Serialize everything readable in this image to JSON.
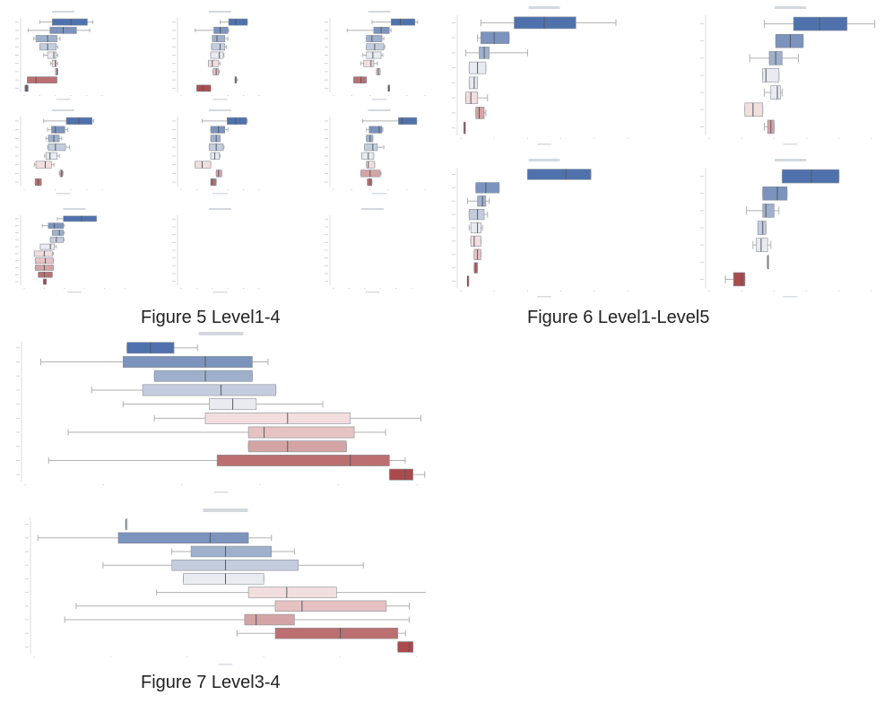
{
  "captions": {
    "fig5": "Figure 5 Level1-4",
    "fig6": "Figure 6 Level1-Level5",
    "fig7": "Figure 7 Level3-4"
  },
  "palette": [
    "#4f72ad",
    "#7b93bd",
    "#9fb0cc",
    "#c4cddd",
    "#e9ebf0",
    "#f2dede",
    "#e6c2c2",
    "#d4a4a4",
    "#bb6f70",
    "#ab4a4d"
  ],
  "chart_data": [
    {
      "id": "f5a",
      "type": "box",
      "orientation": "horizontal",
      "xlim": [
        0,
        10
      ],
      "boxes": [
        {
          "lo": 2.0,
          "q1": 3.6,
          "med": 6.0,
          "q3": 8.1,
          "hi": 8.8,
          "c": 0
        },
        {
          "lo": 0.5,
          "q1": 3.3,
          "med": 5.0,
          "q3": 6.7,
          "hi": 8.4,
          "c": 1
        },
        {
          "lo": 1.2,
          "q1": 1.5,
          "med": 3.0,
          "q3": 4.2,
          "hi": 4.6,
          "c": 2
        },
        {
          "lo": 2.0,
          "q1": 2.0,
          "med": 3.0,
          "q3": 4.1,
          "hi": 4.3,
          "c": 3
        },
        {
          "lo": 2.5,
          "q1": 3.0,
          "med": 3.8,
          "q3": 4.1,
          "hi": 4.3,
          "c": 4
        },
        {
          "lo": 3.4,
          "q1": 3.6,
          "med": 4.0,
          "q3": 4.1,
          "hi": 4.3,
          "c": 5
        },
        {
          "lo": 4.0,
          "q1": 4.0,
          "med": 4.2,
          "q3": 4.3,
          "hi": 4.3,
          "c": 6
        },
        {
          "lo": 0.4,
          "q1": 0.4,
          "med": 1.5,
          "q3": 4.2,
          "hi": 4.2,
          "c": 8
        },
        {
          "lo": 0.1,
          "q1": 0.1,
          "med": 0.3,
          "q3": 0.5,
          "hi": 0.5,
          "c": 9
        }
      ]
    },
    {
      "id": "f5b",
      "type": "box",
      "orientation": "horizontal",
      "xlim": [
        0,
        10
      ],
      "boxes": [
        {
          "lo": 5.0,
          "q1": 6.1,
          "med": 7.0,
          "q3": 8.5,
          "hi": 8.5,
          "c": 0
        },
        {
          "lo": 1.8,
          "q1": 4.2,
          "med": 5.0,
          "q3": 6.0,
          "hi": 6.1,
          "c": 1
        },
        {
          "lo": 4.0,
          "q1": 4.0,
          "med": 4.6,
          "q3": 5.6,
          "hi": 6.0,
          "c": 2
        },
        {
          "lo": 3.9,
          "q1": 3.9,
          "med": 5.0,
          "q3": 5.6,
          "hi": 5.8,
          "c": 3
        },
        {
          "lo": 3.8,
          "q1": 3.8,
          "med": 4.9,
          "q3": 5.4,
          "hi": 5.5,
          "c": 4
        },
        {
          "lo": 3.5,
          "q1": 3.5,
          "med": 4.0,
          "q3": 4.8,
          "hi": 5.0,
          "c": 5
        },
        {
          "lo": 4.1,
          "q1": 4.1,
          "med": 4.5,
          "q3": 4.8,
          "hi": 4.9,
          "c": 6
        },
        {
          "lo": 6.9,
          "q1": 6.9,
          "med": 7.0,
          "q3": 7.1,
          "hi": 7.2,
          "c": 7
        },
        {
          "lo": 2.0,
          "q1": 2.0,
          "med": 2.8,
          "q3": 3.8,
          "hi": 3.8,
          "c": 9
        }
      ]
    },
    {
      "id": "f5c",
      "type": "box",
      "orientation": "horizontal",
      "xlim": [
        0,
        10
      ],
      "boxes": [
        {
          "lo": 4.2,
          "q1": 6.3,
          "med": 7.3,
          "q3": 8.9,
          "hi": 9.2,
          "c": 0
        },
        {
          "lo": 1.5,
          "q1": 4.4,
          "med": 5.2,
          "q3": 6.1,
          "hi": 6.3,
          "c": 1
        },
        {
          "lo": 3.6,
          "q1": 3.6,
          "med": 4.2,
          "q3": 5.3,
          "hi": 5.5,
          "c": 2
        },
        {
          "lo": 3.6,
          "q1": 3.6,
          "med": 4.5,
          "q3": 5.5,
          "hi": 5.6,
          "c": 3
        },
        {
          "lo": 3.2,
          "q1": 3.6,
          "med": 4.3,
          "q3": 5.2,
          "hi": 5.4,
          "c": 4
        },
        {
          "lo": 3.0,
          "q1": 3.3,
          "med": 4.1,
          "q3": 4.4,
          "hi": 4.8,
          "c": 5
        },
        {
          "lo": 4.7,
          "q1": 4.7,
          "med": 4.9,
          "q3": 5.1,
          "hi": 5.1,
          "c": 6
        },
        {
          "lo": 2.2,
          "q1": 2.2,
          "med": 3.0,
          "q3": 3.6,
          "hi": 3.6,
          "c": 8
        },
        {
          "lo": 6.0,
          "q1": 6.0,
          "med": 6.0,
          "q3": 6.0,
          "hi": 6.0,
          "c": 9
        }
      ]
    },
    {
      "id": "f5d",
      "type": "box",
      "orientation": "horizontal",
      "xlim": [
        0,
        10
      ],
      "boxes": [
        {
          "lo": 2.5,
          "q1": 5.4,
          "med": 7.0,
          "q3": 8.7,
          "hi": 8.9,
          "c": 0
        },
        {
          "lo": 3.0,
          "q1": 3.5,
          "med": 4.0,
          "q3": 5.2,
          "hi": 5.6,
          "c": 1
        },
        {
          "lo": 2.8,
          "q1": 3.1,
          "med": 3.8,
          "q3": 4.5,
          "hi": 4.8,
          "c": 2
        },
        {
          "lo": 3.0,
          "q1": 3.1,
          "med": 4.0,
          "q3": 5.3,
          "hi": 5.8,
          "c": 3
        },
        {
          "lo": 2.6,
          "q1": 2.8,
          "med": 3.3,
          "q3": 4.2,
          "hi": 4.5,
          "c": 4
        },
        {
          "lo": 1.3,
          "q1": 1.5,
          "med": 2.7,
          "q3": 3.5,
          "hi": 3.8,
          "c": 5
        },
        {
          "lo": 4.5,
          "q1": 4.6,
          "med": 4.8,
          "q3": 4.9,
          "hi": 5.0,
          "c": 7
        },
        {
          "lo": 1.4,
          "q1": 1.4,
          "med": 1.8,
          "q3": 2.2,
          "hi": 2.2,
          "c": 8
        }
      ]
    },
    {
      "id": "f5e",
      "type": "box",
      "orientation": "horizontal",
      "xlim": [
        0,
        10
      ],
      "boxes": [
        {
          "lo": 2.7,
          "q1": 5.9,
          "med": 7.0,
          "q3": 8.4,
          "hi": 8.5,
          "c": 0
        },
        {
          "lo": 3.8,
          "q1": 3.8,
          "med": 4.8,
          "q3": 5.6,
          "hi": 6.0,
          "c": 1
        },
        {
          "lo": 3.8,
          "q1": 3.8,
          "med": 4.5,
          "q3": 5.0,
          "hi": 5.0,
          "c": 2
        },
        {
          "lo": 3.6,
          "q1": 3.6,
          "med": 4.5,
          "q3": 5.4,
          "hi": 5.5,
          "c": 3
        },
        {
          "lo": 3.8,
          "q1": 3.8,
          "med": 4.3,
          "q3": 4.9,
          "hi": 5.0,
          "c": 4
        },
        {
          "lo": 1.8,
          "q1": 1.8,
          "med": 2.7,
          "q3": 3.8,
          "hi": 3.8,
          "c": 5
        },
        {
          "lo": 4.5,
          "q1": 4.5,
          "med": 4.8,
          "q3": 5.2,
          "hi": 5.2,
          "c": 7
        },
        {
          "lo": 3.8,
          "q1": 3.8,
          "med": 4.0,
          "q3": 4.5,
          "hi": 4.5,
          "c": 8
        }
      ]
    },
    {
      "id": "f5f",
      "type": "box",
      "orientation": "horizontal",
      "xlim": [
        0,
        10
      ],
      "boxes": [
        {
          "lo": 3.2,
          "q1": 7.1,
          "med": 7.5,
          "q3": 9.1,
          "hi": 9.1,
          "c": 0
        },
        {
          "lo": 3.6,
          "q1": 3.9,
          "med": 5.0,
          "q3": 5.3,
          "hi": 5.4,
          "c": 1
        },
        {
          "lo": 3.6,
          "q1": 3.6,
          "med": 4.0,
          "q3": 4.3,
          "hi": 4.3,
          "c": 2
        },
        {
          "lo": 3.4,
          "q1": 3.4,
          "med": 4.3,
          "q3": 4.8,
          "hi": 5.5,
          "c": 3
        },
        {
          "lo": 3.1,
          "q1": 3.1,
          "med": 3.8,
          "q3": 4.4,
          "hi": 4.4,
          "c": 4
        },
        {
          "lo": 3.6,
          "q1": 3.6,
          "med": 3.8,
          "q3": 4.5,
          "hi": 4.5,
          "c": 5
        },
        {
          "lo": 3.0,
          "q1": 3.0,
          "med": 4.0,
          "q3": 5.1,
          "hi": 5.2,
          "c": 7
        },
        {
          "lo": 3.7,
          "q1": 3.7,
          "med": 4.0,
          "q3": 4.2,
          "hi": 4.2,
          "c": 8
        }
      ]
    },
    {
      "id": "f5g",
      "type": "box",
      "orientation": "horizontal",
      "xlim": [
        0,
        10
      ],
      "boxes": [
        {
          "lo": 3.3,
          "q1": 3.9,
          "med": 5.7,
          "q3": 7.2,
          "hi": 7.2,
          "c": 0
        },
        {
          "lo": 1.8,
          "q1": 2.4,
          "med": 3.0,
          "q3": 3.9,
          "hi": 4.0,
          "c": 1
        },
        {
          "lo": 2.8,
          "q1": 2.8,
          "med": 3.5,
          "q3": 3.9,
          "hi": 4.0,
          "c": 2
        },
        {
          "lo": 2.6,
          "q1": 2.6,
          "med": 3.2,
          "q3": 3.9,
          "hi": 4.0,
          "c": 3
        },
        {
          "lo": 1.6,
          "q1": 1.6,
          "med": 2.6,
          "q3": 3.0,
          "hi": 3.2,
          "c": 4
        },
        {
          "lo": 1.0,
          "q1": 1.0,
          "med": 2.0,
          "q3": 2.8,
          "hi": 2.9,
          "c": 5
        },
        {
          "lo": 1.1,
          "q1": 1.1,
          "med": 2.1,
          "q3": 2.9,
          "hi": 2.9,
          "c": 6
        },
        {
          "lo": 1.1,
          "q1": 1.1,
          "med": 2.0,
          "q3": 2.9,
          "hi": 2.9,
          "c": 7
        },
        {
          "lo": 1.4,
          "q1": 1.4,
          "med": 2.0,
          "q3": 2.8,
          "hi": 2.8,
          "c": 8
        },
        {
          "lo": 1.9,
          "q1": 1.9,
          "med": 2.1,
          "q3": 2.2,
          "hi": 2.2,
          "c": 9
        }
      ]
    },
    {
      "id": "f5h",
      "type": "box",
      "orientation": "horizontal",
      "xlim": [
        0,
        10
      ],
      "boxes": []
    },
    {
      "id": "f5i",
      "type": "box",
      "orientation": "horizontal",
      "xlim": [
        0,
        10
      ],
      "boxes": []
    },
    {
      "id": "f6a",
      "type": "box",
      "orientation": "horizontal",
      "xlim": [
        0,
        10
      ],
      "boxes": [
        {
          "lo": 1.2,
          "q1": 3.2,
          "med": 5.0,
          "q3": 6.9,
          "hi": 9.3,
          "c": 0
        },
        {
          "lo": 1.0,
          "q1": 1.2,
          "med": 2.0,
          "q3": 2.9,
          "hi": 2.9,
          "c": 1
        },
        {
          "lo": 0.3,
          "q1": 1.1,
          "med": 1.4,
          "q3": 1.7,
          "hi": 4.0,
          "c": 2
        },
        {
          "lo": 0.5,
          "q1": 0.5,
          "med": 1.0,
          "q3": 1.5,
          "hi": 1.5,
          "c": 4
        },
        {
          "lo": 0.5,
          "q1": 0.5,
          "med": 0.8,
          "q3": 1.0,
          "hi": 1.0,
          "c": 4
        },
        {
          "lo": 0.3,
          "q1": 0.3,
          "med": 0.6,
          "q3": 1.0,
          "hi": 1.6,
          "c": 5
        },
        {
          "lo": 0.9,
          "q1": 0.9,
          "med": 1.1,
          "q3": 1.4,
          "hi": 1.5,
          "c": 7
        },
        {
          "lo": 0.2,
          "q1": 0.2,
          "med": 0.2,
          "q3": 0.2,
          "hi": 0.2,
          "c": 9
        }
      ]
    },
    {
      "id": "f6b",
      "type": "box",
      "orientation": "horizontal",
      "xlim": [
        0,
        10
      ],
      "boxes": [
        {
          "lo": 3.4,
          "q1": 5.2,
          "med": 6.8,
          "q3": 8.5,
          "hi": 10.2,
          "c": 0
        },
        {
          "lo": 4.1,
          "q1": 4.1,
          "med": 5.0,
          "q3": 5.8,
          "hi": 5.8,
          "c": 1
        },
        {
          "lo": 2.5,
          "q1": 3.7,
          "med": 4.1,
          "q3": 4.5,
          "hi": 5.5,
          "c": 2
        },
        {
          "lo": 3.3,
          "q1": 3.3,
          "med": 3.5,
          "q3": 4.3,
          "hi": 4.3,
          "c": 4
        },
        {
          "lo": 3.4,
          "q1": 3.8,
          "med": 4.2,
          "q3": 4.4,
          "hi": 4.5,
          "c": 4
        },
        {
          "lo": 2.2,
          "q1": 2.2,
          "med": 2.7,
          "q3": 3.3,
          "hi": 3.3,
          "c": 5
        },
        {
          "lo": 3.4,
          "q1": 3.6,
          "med": 3.8,
          "q3": 4.0,
          "hi": 4.0,
          "c": 7
        }
      ]
    },
    {
      "id": "f6c",
      "type": "box",
      "orientation": "horizontal",
      "xlim": [
        0,
        10
      ],
      "boxes": [
        {
          "lo": 4.0,
          "q1": 4.0,
          "med": 6.3,
          "q3": 7.8,
          "hi": 7.8,
          "c": 0
        },
        {
          "lo": 0.9,
          "q1": 0.9,
          "med": 1.5,
          "q3": 2.3,
          "hi": 2.3,
          "c": 1
        },
        {
          "lo": 0.4,
          "q1": 1.0,
          "med": 1.3,
          "q3": 1.5,
          "hi": 1.7,
          "c": 2
        },
        {
          "lo": 0.5,
          "q1": 0.5,
          "med": 1.0,
          "q3": 1.4,
          "hi": 1.6,
          "c": 3
        },
        {
          "lo": 0.5,
          "q1": 0.6,
          "med": 1.0,
          "q3": 1.2,
          "hi": 1.3,
          "c": 4
        },
        {
          "lo": 0.6,
          "q1": 0.6,
          "med": 0.8,
          "q3": 1.2,
          "hi": 1.2,
          "c": 5
        },
        {
          "lo": 0.8,
          "q1": 0.8,
          "med": 1.0,
          "q3": 1.2,
          "hi": 1.2,
          "c": 6
        },
        {
          "lo": 0.8,
          "q1": 0.8,
          "med": 0.9,
          "q3": 1.0,
          "hi": 1.0,
          "c": 8
        },
        {
          "lo": 0.4,
          "q1": 0.4,
          "med": 0.4,
          "q3": 0.4,
          "hi": 0.4,
          "c": 9
        }
      ]
    },
    {
      "id": "f6d",
      "type": "box",
      "orientation": "horizontal",
      "xlim": [
        0,
        10
      ],
      "boxes": [
        {
          "lo": 4.5,
          "q1": 4.5,
          "med": 6.3,
          "q3": 8.0,
          "hi": 8.0,
          "c": 0
        },
        {
          "lo": 3.3,
          "q1": 3.3,
          "med": 4.2,
          "q3": 4.8,
          "hi": 4.8,
          "c": 1
        },
        {
          "lo": 2.3,
          "q1": 3.3,
          "med": 3.5,
          "q3": 4.0,
          "hi": 4.3,
          "c": 2
        },
        {
          "lo": 3.0,
          "q1": 3.0,
          "med": 3.3,
          "q3": 3.5,
          "hi": 3.5,
          "c": 3
        },
        {
          "lo": 2.7,
          "q1": 2.9,
          "med": 3.2,
          "q3": 3.6,
          "hi": 3.8,
          "c": 4
        },
        {
          "lo": 3.6,
          "q1": 3.6,
          "med": 3.6,
          "q3": 3.6,
          "hi": 3.6,
          "c": 5
        },
        {
          "lo": 1.0,
          "q1": 1.5,
          "med": 2.0,
          "q3": 2.2,
          "hi": 2.2,
          "c": 9
        }
      ]
    },
    {
      "id": "f7a",
      "type": "box",
      "orientation": "horizontal",
      "xlim": [
        0,
        10
      ],
      "boxes": [
        {
          "lo": 2.6,
          "q1": 2.6,
          "med": 3.2,
          "q3": 3.8,
          "hi": 4.4,
          "c": 0
        },
        {
          "lo": 0.4,
          "q1": 2.5,
          "med": 4.6,
          "q3": 5.8,
          "hi": 6.2,
          "c": 1
        },
        {
          "lo": 3.3,
          "q1": 3.3,
          "med": 4.6,
          "q3": 5.8,
          "hi": 5.8,
          "c": 2
        },
        {
          "lo": 1.7,
          "q1": 3.0,
          "med": 5.0,
          "q3": 6.4,
          "hi": 6.4,
          "c": 3
        },
        {
          "lo": 2.5,
          "q1": 4.7,
          "med": 5.3,
          "q3": 5.9,
          "hi": 7.6,
          "c": 4
        },
        {
          "lo": 3.3,
          "q1": 4.6,
          "med": 6.7,
          "q3": 8.3,
          "hi": 10.1,
          "c": 5
        },
        {
          "lo": 1.1,
          "q1": 5.7,
          "med": 6.1,
          "q3": 8.4,
          "hi": 9.2,
          "c": 6
        },
        {
          "lo": 5.7,
          "q1": 5.7,
          "med": 6.7,
          "q3": 8.2,
          "hi": 8.2,
          "c": 7
        },
        {
          "lo": 0.6,
          "q1": 4.9,
          "med": 8.3,
          "q3": 9.3,
          "hi": 9.7,
          "c": 8
        },
        {
          "lo": 9.3,
          "q1": 9.3,
          "med": 9.7,
          "q3": 9.9,
          "hi": 10.2,
          "c": 9
        }
      ]
    },
    {
      "id": "f7b",
      "type": "box",
      "orientation": "horizontal",
      "xlim": [
        0,
        10
      ],
      "boxes": [
        {
          "lo": 2.4,
          "q1": 2.4,
          "med": 2.4,
          "q3": 2.4,
          "hi": 2.4,
          "c": 4
        },
        {
          "lo": 0.1,
          "q1": 2.2,
          "med": 4.6,
          "q3": 5.6,
          "hi": 6.2,
          "c": 1
        },
        {
          "lo": 3.6,
          "q1": 4.1,
          "med": 5.0,
          "q3": 6.2,
          "hi": 6.8,
          "c": 2
        },
        {
          "lo": 1.8,
          "q1": 3.6,
          "med": 5.0,
          "q3": 6.9,
          "hi": 8.6,
          "c": 3
        },
        {
          "lo": 3.9,
          "q1": 3.9,
          "med": 5.0,
          "q3": 6.0,
          "hi": 6.0,
          "c": 4
        },
        {
          "lo": 3.2,
          "q1": 5.6,
          "med": 6.6,
          "q3": 7.9,
          "hi": 10.7,
          "c": 5
        },
        {
          "lo": 1.1,
          "q1": 6.3,
          "med": 7.0,
          "q3": 9.2,
          "hi": 9.8,
          "c": 6
        },
        {
          "lo": 0.8,
          "q1": 5.5,
          "med": 5.8,
          "q3": 6.8,
          "hi": 9.8,
          "c": 7
        },
        {
          "lo": 5.3,
          "q1": 6.3,
          "med": 8.0,
          "q3": 9.5,
          "hi": 9.7,
          "c": 8
        },
        {
          "lo": 9.5,
          "q1": 9.5,
          "med": 9.8,
          "q3": 9.9,
          "hi": 9.9,
          "c": 9
        }
      ]
    }
  ]
}
